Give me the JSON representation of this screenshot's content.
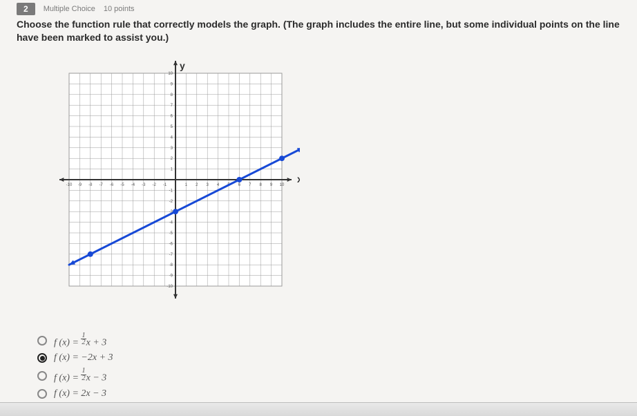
{
  "header": {
    "q_num": "2",
    "q_type": "Multiple Choice",
    "q_points": "10 points"
  },
  "prompt": "Choose the function rule that correctly models the graph. (The graph includes the entire line, but some individual points on the line have been marked to assist you.)",
  "chart": {
    "type": "line",
    "xlabel": "x",
    "ylabel": "y",
    "xlim": [
      -10,
      10
    ],
    "ylim": [
      -10,
      10
    ],
    "tick_step": 1,
    "axis_label_color": "#333333",
    "grid_color": "#9a9a9a",
    "axis_color": "#333333",
    "background_color": "#ffffff",
    "line": {
      "color": "#1749d6",
      "width": 3,
      "points": [
        [
          -10,
          -8
        ],
        [
          12,
          3
        ]
      ]
    },
    "marked_points": [
      [
        -8,
        -7
      ],
      [
        0,
        -3
      ],
      [
        6,
        0
      ],
      [
        10,
        2
      ]
    ],
    "marker_color": "#1749d6",
    "marker_size": 4,
    "axis_arrow": true
  },
  "choices": [
    {
      "id": "a",
      "latex": "f(x) = \\tfrac{1}{2}x + 3",
      "selected": false
    },
    {
      "id": "b",
      "latex": "f(x) = -2x + 3",
      "selected": true
    },
    {
      "id": "c",
      "latex": "f(x) = \\tfrac{1}{2}x - 3",
      "selected": false
    },
    {
      "id": "d",
      "latex": "f(x) = 2x - 3",
      "selected": false
    }
  ],
  "choice_labels": {
    "a": "f (x) = ½x + 3",
    "b": "f (x) = −2x + 3",
    "c": "f (x) = ½x − 3",
    "d": "f (x) = 2x − 3"
  }
}
